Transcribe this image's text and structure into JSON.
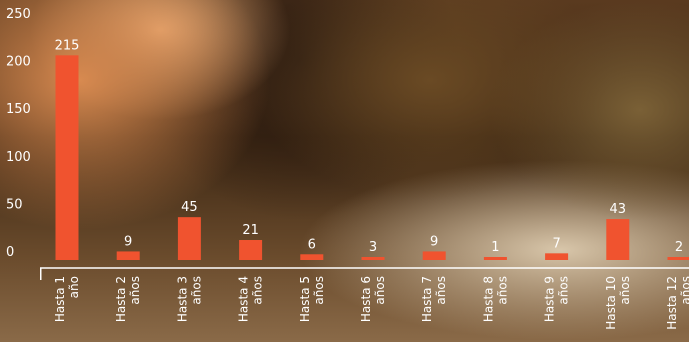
{
  "chart_data": {
    "type": "bar",
    "categories": [
      [
        "Hasta 1",
        "año"
      ],
      [
        "Hasta 2",
        "años"
      ],
      [
        "Hasta 3",
        "años"
      ],
      [
        "Hasta 4",
        "años"
      ],
      [
        "Hasta 5",
        "años"
      ],
      [
        "Hasta 6",
        "años"
      ],
      [
        "Hasta 7",
        "años"
      ],
      [
        "Hasta 8",
        "años"
      ],
      [
        "Hasta 9",
        "años"
      ],
      [
        "Hasta 10",
        "años"
      ],
      [
        "Hasta 12",
        "años"
      ]
    ],
    "values": [
      215,
      9,
      45,
      21,
      6,
      3,
      9,
      1,
      7,
      43,
      2
    ],
    "y_ticks": [
      0,
      50,
      100,
      150,
      200,
      250
    ],
    "ylim": [
      0,
      250
    ],
    "title": "",
    "xlabel": "",
    "ylabel": "",
    "grid": false,
    "bar_color": "#f0532f",
    "text_color": "#ffffff"
  }
}
